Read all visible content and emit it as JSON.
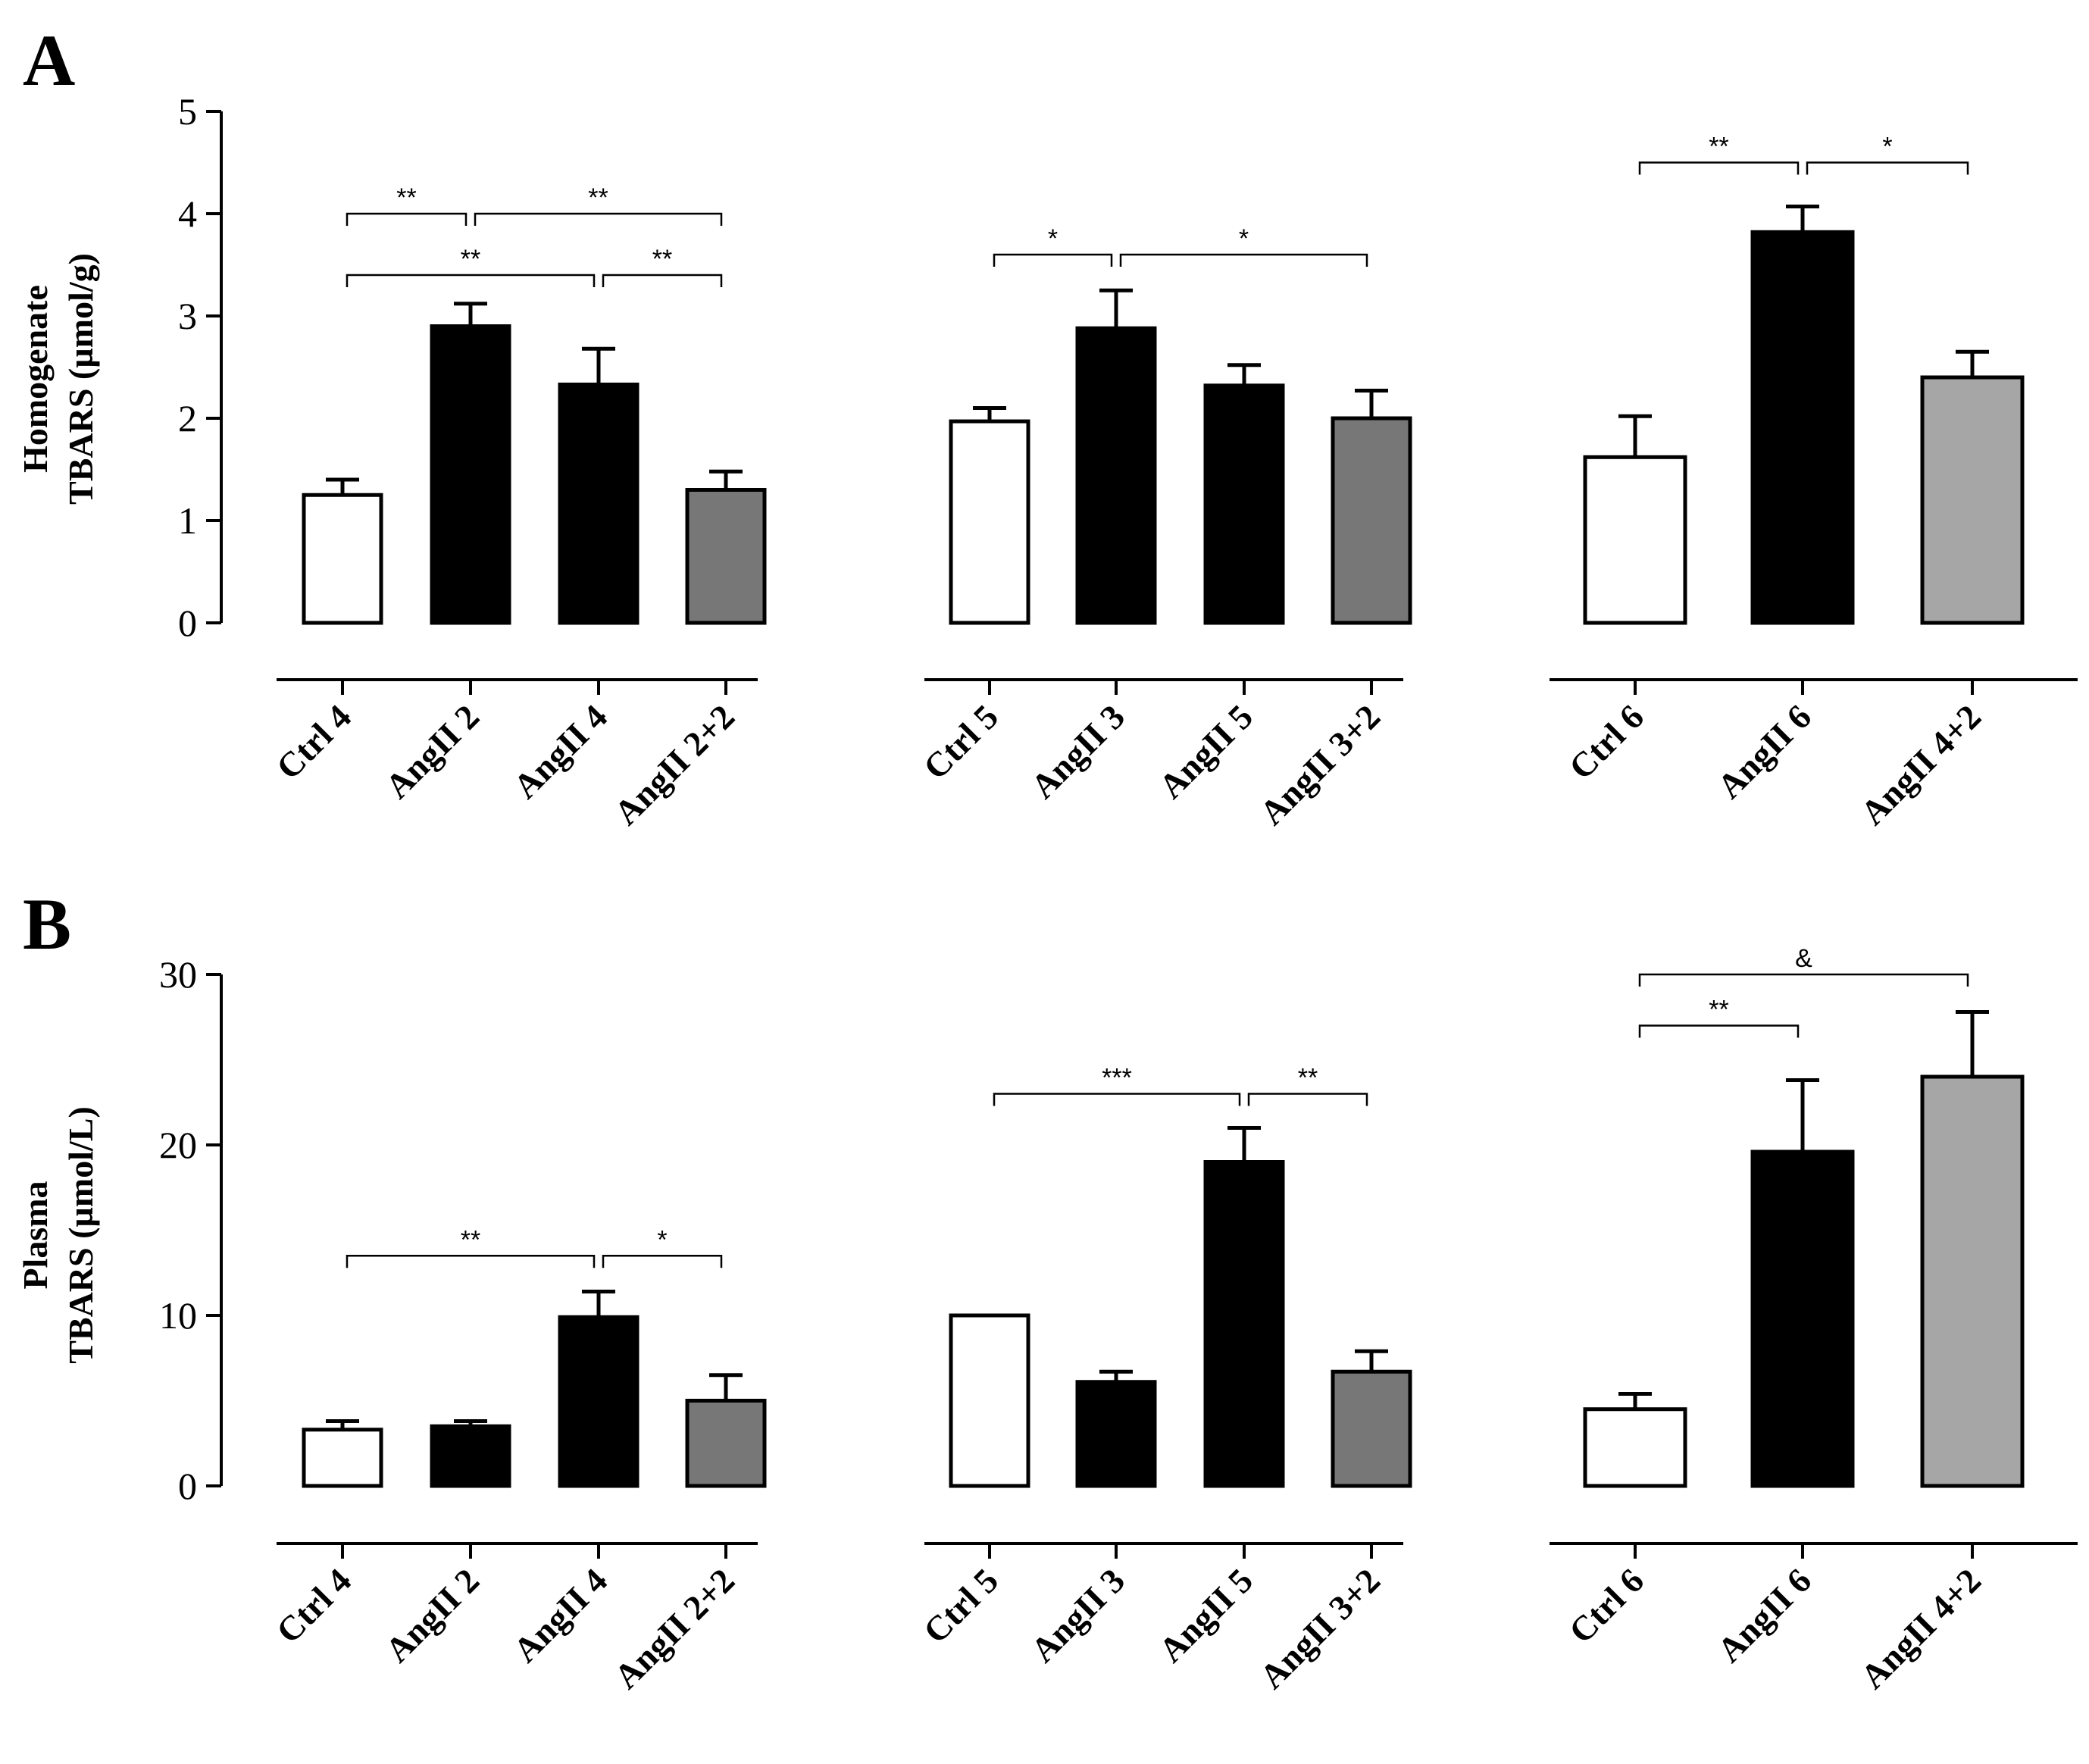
{
  "chart_data": [
    {
      "panel": "A",
      "type": "bar",
      "ylabel_line1": "Homogenate",
      "ylabel_line2": "TBARS (µmol/g)",
      "ylim": [
        0,
        5
      ],
      "yticks": [
        "0",
        "1",
        "2",
        "3",
        "4",
        "5"
      ],
      "groups": [
        {
          "bars": [
            {
              "label": "Ctrl 4",
              "value": 1.25,
              "error": 0.15,
              "fill": "#ffffff"
            },
            {
              "label": "AngII 2",
              "value": 2.9,
              "error": 0.22,
              "fill": "#000000"
            },
            {
              "label": "AngII 4",
              "value": 2.33,
              "error": 0.35,
              "fill": "#000000"
            },
            {
              "label": "AngII 2+2",
              "value": 1.3,
              "error": 0.18,
              "fill": "#777777"
            }
          ],
          "significance": [
            {
              "from": 0,
              "to": 1,
              "y": 4.0,
              "label": "**"
            },
            {
              "from": 1,
              "to": 3,
              "y": 4.0,
              "label": "**"
            },
            {
              "from": 0,
              "to": 2,
              "y": 3.4,
              "label": "**"
            },
            {
              "from": 2,
              "to": 3,
              "y": 3.4,
              "label": "**"
            }
          ]
        },
        {
          "bars": [
            {
              "label": "Ctrl 5",
              "value": 1.97,
              "error": 0.13,
              "fill": "#ffffff"
            },
            {
              "label": "AngII 3",
              "value": 2.88,
              "error": 0.37,
              "fill": "#000000"
            },
            {
              "label": "AngII 5",
              "value": 2.32,
              "error": 0.2,
              "fill": "#000000"
            },
            {
              "label": "AngII 3+2",
              "value": 2.0,
              "error": 0.27,
              "fill": "#777777"
            }
          ],
          "significance": [
            {
              "from": 0,
              "to": 1,
              "y": 3.6,
              "label": "*"
            },
            {
              "from": 1,
              "to": 3,
              "y": 3.6,
              "label": "*"
            }
          ]
        },
        {
          "bars": [
            {
              "label": "Ctrl 6",
              "value": 1.62,
              "error": 0.4,
              "fill": "#ffffff"
            },
            {
              "label": "AngII 6",
              "value": 3.82,
              "error": 0.25,
              "fill": "#000000"
            },
            {
              "label": "AngII 4+2",
              "value": 2.4,
              "error": 0.25,
              "fill": "#a6a6a6"
            }
          ],
          "significance": [
            {
              "from": 0,
              "to": 1,
              "y": 4.5,
              "label": "**"
            },
            {
              "from": 1,
              "to": 2,
              "y": 4.5,
              "label": "*"
            }
          ]
        }
      ]
    },
    {
      "panel": "B",
      "type": "bar",
      "ylabel_line1": "Plasma",
      "ylabel_line2": "TBARS (µmol/L)",
      "ylim": [
        0,
        30
      ],
      "yticks": [
        "0",
        "10",
        "20",
        "30"
      ],
      "groups": [
        {
          "bars": [
            {
              "label": "Ctrl 4",
              "value": 3.3,
              "error": 0.5,
              "fill": "#ffffff"
            },
            {
              "label": "AngII 2",
              "value": 3.5,
              "error": 0.3,
              "fill": "#000000"
            },
            {
              "label": "AngII 4",
              "value": 9.9,
              "error": 1.5,
              "fill": "#000000"
            },
            {
              "label": "AngII 2+2",
              "value": 5.0,
              "error": 1.5,
              "fill": "#777777"
            }
          ],
          "significance": [
            {
              "from": 0,
              "to": 2,
              "y": 13.5,
              "label": "**"
            },
            {
              "from": 2,
              "to": 3,
              "y": 13.5,
              "label": "*"
            }
          ]
        },
        {
          "bars": [
            {
              "label": "Ctrl 5",
              "value": 10.0,
              "error": 0,
              "fill": "#ffffff"
            },
            {
              "label": "AngII 3",
              "value": 6.1,
              "error": 0.6,
              "fill": "#000000"
            },
            {
              "label": "AngII 5",
              "value": 19.0,
              "error": 2.0,
              "fill": "#000000"
            },
            {
              "label": "AngII 3+2",
              "value": 6.7,
              "error": 1.2,
              "fill": "#777777"
            }
          ],
          "significance": [
            {
              "from": 0,
              "to": 2,
              "y": 23.0,
              "label": "***"
            },
            {
              "from": 2,
              "to": 3,
              "y": 23.0,
              "label": "**"
            }
          ]
        },
        {
          "bars": [
            {
              "label": "Ctrl 6",
              "value": 4.5,
              "error": 0.9,
              "fill": "#ffffff"
            },
            {
              "label": "AngII 6",
              "value": 19.6,
              "error": 4.2,
              "fill": "#000000"
            },
            {
              "label": "AngII 4+2",
              "value": 24.0,
              "error": 3.8,
              "fill": "#a6a6a6"
            }
          ],
          "significance": [
            {
              "from": 0,
              "to": 1,
              "y": 27.0,
              "label": "**"
            },
            {
              "from": 0,
              "to": 2,
              "y": 30.0,
              "label": "&"
            }
          ]
        }
      ]
    }
  ]
}
